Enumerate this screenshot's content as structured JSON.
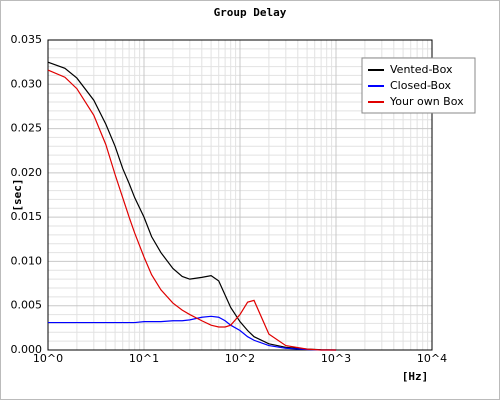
{
  "chart_data": {
    "type": "line",
    "title": "Group Delay",
    "x_label": "[Hz]",
    "y_label": "[sec]",
    "log_x": true,
    "grid": true,
    "legend": "upper right",
    "xlim": [
      1,
      10000
    ],
    "xticks": [
      {
        "value": 1,
        "label": "10^0"
      },
      {
        "value": 10,
        "label": "10^1"
      },
      {
        "value": 100,
        "label": "10^2"
      },
      {
        "value": 1000,
        "label": "10^3"
      },
      {
        "value": 10000,
        "label": "10^4"
      }
    ],
    "ylim": [
      0,
      0.035
    ],
    "yticks": [
      {
        "value": 0,
        "label": "0.000"
      },
      0.005,
      {
        "value": 0.01,
        "label": "0.010"
      },
      0.015,
      {
        "value": 0.02,
        "label": "0.020"
      },
      0.025,
      {
        "value": 0.03,
        "label": "0.030"
      },
      0.035
    ],
    "x": [
      1,
      1.5,
      2,
      3,
      4,
      5,
      6,
      7,
      8,
      10,
      12,
      15,
      20,
      25,
      30,
      40,
      50,
      60,
      70,
      80,
      100,
      120,
      140,
      200,
      300,
      500,
      700,
      1000
    ],
    "series": [
      {
        "name": "Vented-Box",
        "color": "#000000",
        "values": [
          0.0325,
          0.0318,
          0.0307,
          0.0282,
          0.0255,
          0.023,
          0.0205,
          0.0188,
          0.0172,
          0.015,
          0.0128,
          0.011,
          0.0092,
          0.0083,
          0.008,
          0.0082,
          0.0084,
          0.0078,
          0.0062,
          0.0048,
          0.0032,
          0.0022,
          0.0015,
          0.0007,
          0.0003,
          0.0001,
          3e-05,
          0
        ]
      },
      {
        "name": "Closed-Box",
        "color": "#0000ff",
        "values": [
          0.0031,
          0.0031,
          0.0031,
          0.0031,
          0.0031,
          0.0031,
          0.0031,
          0.0031,
          0.0031,
          0.0032,
          0.0032,
          0.0032,
          0.0033,
          0.0033,
          0.0034,
          0.0037,
          0.0038,
          0.0037,
          0.0033,
          0.0028,
          0.0022,
          0.0015,
          0.0011,
          0.0005,
          0.0002,
          5e-05,
          0,
          0
        ]
      },
      {
        "name": "Your own Box",
        "color": "#e00000",
        "values": [
          0.0316,
          0.0308,
          0.0295,
          0.0265,
          0.0232,
          0.0198,
          0.0172,
          0.015,
          0.0132,
          0.0105,
          0.0085,
          0.0068,
          0.0053,
          0.0045,
          0.004,
          0.0033,
          0.0028,
          0.0026,
          0.0026,
          0.0028,
          0.004,
          0.0054,
          0.0056,
          0.0018,
          0.0005,
          0.0001,
          0,
          0
        ]
      }
    ]
  }
}
